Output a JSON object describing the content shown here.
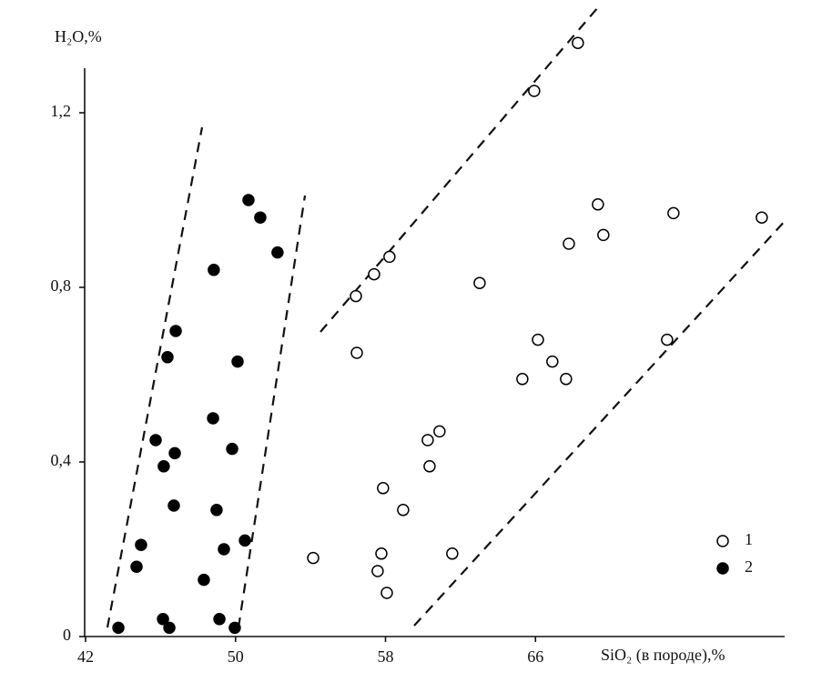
{
  "chart_data": {
    "type": "scatter",
    "y_axis_label": "H₂O,%",
    "x_axis_label": "SiO₂ (в породе),%",
    "xlim": [
      42,
      79
    ],
    "ylim": [
      0,
      1.3
    ],
    "xticks": [
      42,
      50,
      58,
      66
    ],
    "yticks": [
      0,
      {
        "value": 0.4,
        "label": "0,4"
      },
      {
        "value": 0.8,
        "label": "0,8"
      },
      {
        "value": 1.2,
        "label": "1,2"
      }
    ],
    "legend": "lower right",
    "series": [
      {
        "name": "1",
        "color": "#000000",
        "marker_fill": "#ffffff",
        "x": [
          68.26,
          65.93,
          69.33,
          73.36,
          78.07,
          67.78,
          69.62,
          58.21,
          57.39,
          56.42,
          63.02,
          56.47,
          66.13,
          66.9,
          65.3,
          67.63,
          73.02,
          60.88,
          60.25,
          60.35,
          57.87,
          58.94,
          54.14,
          57.78,
          61.56,
          57.58,
          58.07
        ],
        "values": [
          1.36,
          1.25,
          0.99,
          0.97,
          0.96,
          0.9,
          0.92,
          0.87,
          0.83,
          0.78,
          0.81,
          0.65,
          0.68,
          0.63,
          0.59,
          0.59,
          0.68,
          0.47,
          0.45,
          0.39,
          0.34,
          0.29,
          0.18,
          0.19,
          0.19,
          0.15,
          0.1
        ]
      },
      {
        "name": "2",
        "color": "#000000",
        "marker_fill": "#000000",
        "x": [
          50.69,
          51.32,
          52.24,
          48.84,
          46.81,
          46.37,
          50.11,
          48.8,
          45.74,
          46.76,
          46.17,
          49.82,
          46.71,
          48.99,
          44.96,
          49.38,
          50.5,
          44.72,
          48.31,
          46.13,
          49.14,
          43.75,
          46.47,
          49.96
        ],
        "values": [
          1.0,
          0.96,
          0.88,
          0.84,
          0.7,
          0.64,
          0.63,
          0.5,
          0.45,
          0.42,
          0.39,
          0.43,
          0.3,
          0.29,
          0.21,
          0.2,
          0.22,
          0.16,
          0.13,
          0.04,
          0.04,
          0.02,
          0.02,
          0.02
        ]
      }
    ]
  }
}
